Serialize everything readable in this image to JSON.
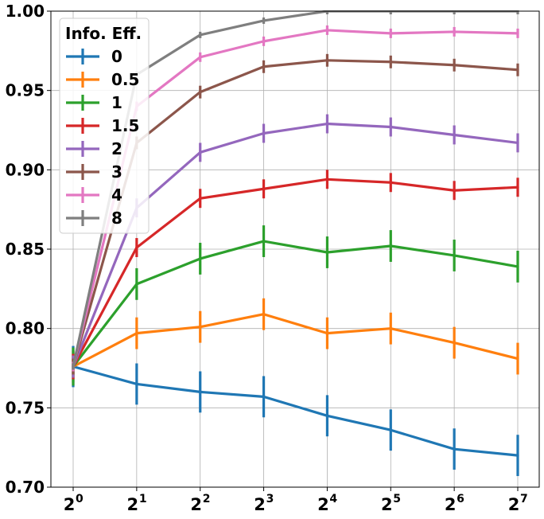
{
  "chart_data": {
    "type": "line",
    "title": "",
    "xlabel": "",
    "ylabel": "",
    "x": [
      0,
      1,
      2,
      3,
      4,
      5,
      6,
      7
    ],
    "x_tick_labels": [
      {
        "base": "2",
        "exp": "0"
      },
      {
        "base": "2",
        "exp": "1"
      },
      {
        "base": "2",
        "exp": "2"
      },
      {
        "base": "2",
        "exp": "3"
      },
      {
        "base": "2",
        "exp": "4"
      },
      {
        "base": "2",
        "exp": "5"
      },
      {
        "base": "2",
        "exp": "6"
      },
      {
        "base": "2",
        "exp": "7"
      }
    ],
    "x_scale": "log2",
    "ylim": [
      0.7,
      1.0
    ],
    "y_ticks": [
      0.7,
      0.75,
      0.8,
      0.85,
      0.9,
      0.95,
      1.0
    ],
    "y_tick_labels": [
      "0.70",
      "0.75",
      "0.80",
      "0.85",
      "0.90",
      "0.95",
      "1.00"
    ],
    "grid": true,
    "legend": {
      "title": "Info. Eff.",
      "placement": "upper-left"
    },
    "series": [
      {
        "name": "0",
        "color": "#1f77b4",
        "values": [
          0.776,
          0.765,
          0.76,
          0.757,
          0.745,
          0.736,
          0.724,
          0.72
        ],
        "errors": [
          0.013,
          0.013,
          0.013,
          0.013,
          0.013,
          0.013,
          0.013,
          0.013
        ]
      },
      {
        "name": "0.5",
        "color": "#ff7f0e",
        "values": [
          0.776,
          0.797,
          0.801,
          0.809,
          0.797,
          0.8,
          0.791,
          0.781
        ],
        "errors": [
          0.01,
          0.01,
          0.01,
          0.01,
          0.01,
          0.01,
          0.01,
          0.01
        ]
      },
      {
        "name": "1",
        "color": "#2ca02c",
        "values": [
          0.776,
          0.828,
          0.844,
          0.855,
          0.848,
          0.852,
          0.846,
          0.839
        ],
        "errors": [
          0.012,
          0.01,
          0.01,
          0.01,
          0.01,
          0.01,
          0.01,
          0.01
        ]
      },
      {
        "name": "1.5",
        "color": "#d62728",
        "values": [
          0.776,
          0.851,
          0.882,
          0.888,
          0.894,
          0.892,
          0.887,
          0.889
        ],
        "errors": [
          0.008,
          0.006,
          0.006,
          0.006,
          0.006,
          0.006,
          0.006,
          0.006
        ]
      },
      {
        "name": "2",
        "color": "#9467bd",
        "values": [
          0.776,
          0.876,
          0.911,
          0.923,
          0.929,
          0.927,
          0.922,
          0.917
        ],
        "errors": [
          0.007,
          0.006,
          0.006,
          0.006,
          0.006,
          0.006,
          0.006,
          0.006
        ]
      },
      {
        "name": "3",
        "color": "#8c564b",
        "values": [
          0.776,
          0.917,
          0.949,
          0.965,
          0.969,
          0.968,
          0.966,
          0.963
        ],
        "errors": [
          0.005,
          0.004,
          0.004,
          0.004,
          0.004,
          0.004,
          0.004,
          0.004
        ]
      },
      {
        "name": "4",
        "color": "#e377c2",
        "values": [
          0.776,
          0.94,
          0.971,
          0.981,
          0.988,
          0.986,
          0.987,
          0.986
        ],
        "errors": [
          0.003,
          0.003,
          0.003,
          0.003,
          0.003,
          0.003,
          0.003,
          0.003
        ]
      },
      {
        "name": "8",
        "color": "#7f7f7f",
        "values": [
          0.776,
          0.96,
          0.985,
          0.994,
          1.0,
          1.0,
          1.0,
          1.0
        ],
        "errors": [
          0.002,
          0.002,
          0.002,
          0.002,
          0.002,
          0.002,
          0.002,
          0.002
        ]
      }
    ]
  }
}
